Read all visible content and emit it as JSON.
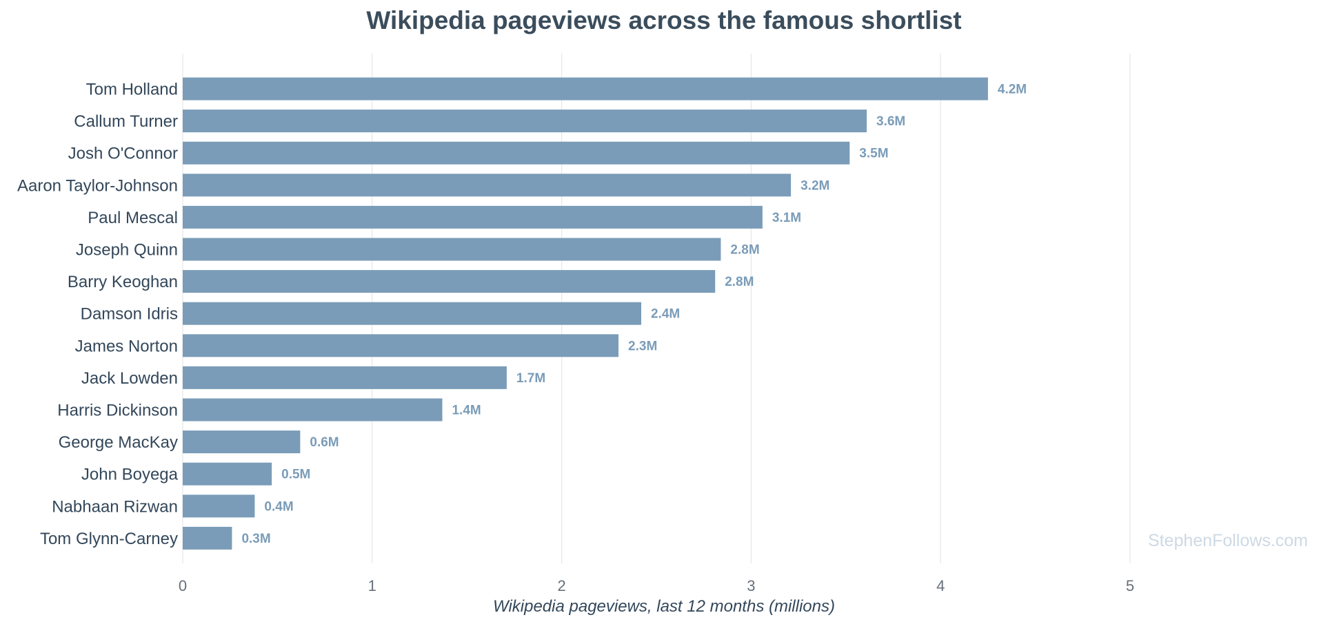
{
  "chart_data": {
    "type": "bar",
    "orientation": "horizontal",
    "title": "Wikipedia pageviews across the famous shortlist",
    "xlabel": "Wikipedia pageviews, last 12 months (millions)",
    "ylabel": "",
    "xlim": [
      0,
      5
    ],
    "xticks": [
      "0",
      "1",
      "2",
      "3",
      "4",
      "5"
    ],
    "grid": "vertical",
    "categories": [
      "Tom Holland",
      "Callum Turner",
      "Josh O'Connor",
      "Aaron Taylor-Johnson",
      "Paul Mescal",
      "Joseph Quinn",
      "Barry Keoghan",
      "Damson Idris",
      "James Norton",
      "Jack Lowden",
      "Harris Dickinson",
      "George MacKay",
      "John Boyega",
      "Nabhaan Rizwan",
      "Tom Glynn-Carney"
    ],
    "values": [
      4.25,
      3.61,
      3.52,
      3.21,
      3.06,
      2.84,
      2.81,
      2.42,
      2.3,
      1.71,
      1.37,
      0.62,
      0.47,
      0.38,
      0.26
    ],
    "data_labels": [
      "4.2M",
      "3.6M",
      "3.5M",
      "3.2M",
      "3.1M",
      "2.8M",
      "2.8M",
      "2.4M",
      "2.3M",
      "1.7M",
      "1.4M",
      "0.6M",
      "0.5M",
      "0.4M",
      "0.3M"
    ],
    "bar_color": "#7a9cb8",
    "label_color": "#7a9cb8"
  },
  "watermark": {
    "text": "StephenFollows.com",
    "color": "#cdd9e4"
  }
}
